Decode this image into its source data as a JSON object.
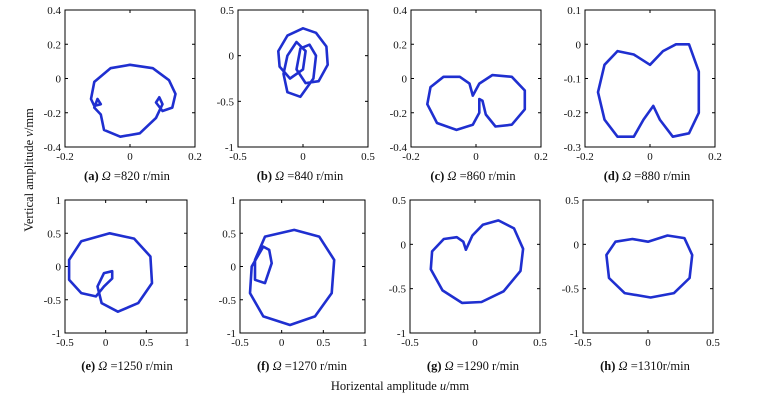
{
  "figure": {
    "xlabel_prefix": "Horizental amplitude ",
    "xlabel_var": "u",
    "xlabel_suffix": "/mm",
    "ylabel_prefix": "Vertical amplitude ",
    "ylabel_var": "v",
    "ylabel_suffix": "/mm"
  },
  "chart_data": [
    {
      "type": "line",
      "panel": "a",
      "letter": "(a)",
      "omega_symbol": "Ω",
      "speed_text": "=820 r/min",
      "xlim": [
        -0.2,
        0.2
      ],
      "ylim": [
        -0.4,
        0.4
      ],
      "xticks": [
        "-0.2",
        "0",
        "0.2"
      ],
      "yticks": [
        "0.4",
        "0.2",
        "0",
        "-0.2",
        "-0.4"
      ],
      "series": [
        {
          "points": [
            [
              0.0,
              0.08
            ],
            [
              0.07,
              0.06
            ],
            [
              0.12,
              -0.01
            ],
            [
              0.14,
              -0.09
            ],
            [
              0.13,
              -0.17
            ],
            [
              0.1,
              -0.19
            ],
            [
              0.08,
              -0.14
            ],
            [
              0.09,
              -0.11
            ],
            [
              0.1,
              -0.15
            ],
            [
              0.08,
              -0.23
            ],
            [
              0.03,
              -0.32
            ],
            [
              -0.03,
              -0.34
            ],
            [
              -0.08,
              -0.3
            ],
            [
              -0.09,
              -0.21
            ],
            [
              -0.11,
              -0.17
            ],
            [
              -0.1,
              -0.12
            ],
            [
              -0.09,
              -0.15
            ],
            [
              -0.11,
              -0.16
            ],
            [
              -0.12,
              -0.12
            ],
            [
              -0.11,
              -0.02
            ],
            [
              -0.06,
              0.06
            ],
            [
              0.0,
              0.08
            ]
          ]
        }
      ]
    },
    {
      "type": "line",
      "panel": "b",
      "letter": "(b)",
      "omega_symbol": "Ω",
      "speed_text": "=840 r/min",
      "xlim": [
        -0.5,
        0.5
      ],
      "ylim": [
        -1,
        0.5
      ],
      "xticks": [
        "-0.5",
        "0",
        "0.5"
      ],
      "yticks": [
        "0.5",
        "0",
        "-0.5",
        "-1"
      ],
      "series": [
        {
          "points": [
            [
              0.0,
              0.3
            ],
            [
              0.1,
              0.25
            ],
            [
              0.18,
              0.1
            ],
            [
              0.19,
              -0.1
            ],
            [
              0.12,
              -0.28
            ],
            [
              0.02,
              -0.3
            ],
            [
              -0.05,
              -0.15
            ],
            [
              -0.02,
              0.08
            ],
            [
              0.05,
              0.12
            ],
            [
              0.1,
              0.0
            ],
            [
              0.08,
              -0.25
            ],
            [
              -0.02,
              -0.45
            ],
            [
              -0.12,
              -0.4
            ],
            [
              -0.15,
              -0.2
            ],
            [
              -0.12,
              0.0
            ],
            [
              -0.05,
              0.15
            ],
            [
              0.02,
              0.05
            ],
            [
              0.0,
              -0.15
            ],
            [
              -0.1,
              -0.25
            ],
            [
              -0.18,
              -0.12
            ],
            [
              -0.19,
              0.05
            ],
            [
              -0.12,
              0.22
            ],
            [
              0.0,
              0.3
            ]
          ]
        }
      ]
    },
    {
      "type": "line",
      "panel": "c",
      "letter": "(c)",
      "omega_symbol": "Ω",
      "speed_text": "=860 r/min",
      "xlim": [
        -0.2,
        0.2
      ],
      "ylim": [
        -0.4,
        0.4
      ],
      "xticks": [
        "-0.2",
        "0",
        "0.2"
      ],
      "yticks": [
        "0.4",
        "0.2",
        "0",
        "-0.2",
        "-0.4"
      ],
      "series": [
        {
          "points": [
            [
              -0.01,
              -0.1
            ],
            [
              -0.02,
              -0.03
            ],
            [
              -0.05,
              0.01
            ],
            [
              -0.1,
              0.01
            ],
            [
              -0.14,
              -0.05
            ],
            [
              -0.15,
              -0.15
            ],
            [
              -0.12,
              -0.26
            ],
            [
              -0.06,
              -0.3
            ],
            [
              -0.01,
              -0.27
            ],
            [
              0.01,
              -0.2
            ],
            [
              0.01,
              -0.12
            ],
            [
              0.02,
              -0.13
            ],
            [
              0.03,
              -0.21
            ],
            [
              0.06,
              -0.28
            ],
            [
              0.11,
              -0.27
            ],
            [
              0.15,
              -0.18
            ],
            [
              0.15,
              -0.07
            ],
            [
              0.11,
              0.01
            ],
            [
              0.05,
              0.02
            ],
            [
              0.01,
              -0.03
            ],
            [
              -0.01,
              -0.1
            ]
          ]
        }
      ]
    },
    {
      "type": "line",
      "panel": "d",
      "letter": "(d)",
      "omega_symbol": "Ω",
      "speed_text": "=880 r/min",
      "xlim": [
        -0.2,
        0.2
      ],
      "ylim": [
        -0.3,
        0.1
      ],
      "xticks": [
        "-0.2",
        "0",
        "0.2"
      ],
      "yticks": [
        "0.1",
        "0",
        "-0.1",
        "-0.2",
        "-0.3"
      ],
      "series": [
        {
          "points": [
            [
              0.0,
              -0.06
            ],
            [
              -0.05,
              -0.03
            ],
            [
              -0.1,
              -0.02
            ],
            [
              -0.14,
              -0.06
            ],
            [
              -0.16,
              -0.14
            ],
            [
              -0.14,
              -0.22
            ],
            [
              -0.1,
              -0.27
            ],
            [
              -0.05,
              -0.27
            ],
            [
              -0.02,
              -0.22
            ],
            [
              0.01,
              -0.18
            ],
            [
              0.03,
              -0.22
            ],
            [
              0.07,
              -0.27
            ],
            [
              0.12,
              -0.26
            ],
            [
              0.15,
              -0.2
            ],
            [
              0.15,
              -0.08
            ],
            [
              0.12,
              0.0
            ],
            [
              0.08,
              0.0
            ],
            [
              0.04,
              -0.02
            ],
            [
              0.0,
              -0.06
            ]
          ]
        }
      ]
    },
    {
      "type": "line",
      "panel": "e",
      "letter": "(e)",
      "omega_symbol": "Ω",
      "speed_text": "=1250 r/min",
      "xlim": [
        -0.5,
        1
      ],
      "ylim": [
        -1,
        1
      ],
      "xticks": [
        "-0.5",
        "0",
        "0.5",
        "1"
      ],
      "yticks": [
        "1",
        "0.5",
        "0",
        "-0.5",
        "-1"
      ],
      "series": [
        {
          "points": [
            [
              0.05,
              0.5
            ],
            [
              0.35,
              0.42
            ],
            [
              0.55,
              0.15
            ],
            [
              0.57,
              -0.25
            ],
            [
              0.4,
              -0.55
            ],
            [
              0.15,
              -0.68
            ],
            [
              -0.05,
              -0.55
            ],
            [
              -0.1,
              -0.3
            ],
            [
              -0.02,
              -0.1
            ],
            [
              0.08,
              -0.07
            ],
            [
              0.08,
              -0.18
            ],
            [
              -0.02,
              -0.3
            ],
            [
              -0.12,
              -0.45
            ],
            [
              -0.3,
              -0.4
            ],
            [
              -0.45,
              -0.2
            ],
            [
              -0.45,
              0.1
            ],
            [
              -0.3,
              0.38
            ],
            [
              0.05,
              0.5
            ]
          ]
        }
      ]
    },
    {
      "type": "line",
      "panel": "f",
      "letter": "(f)",
      "omega_symbol": "Ω",
      "speed_text": "=1270 r/min",
      "xlim": [
        -0.5,
        1
      ],
      "ylim": [
        -1,
        1
      ],
      "xticks": [
        "-0.5",
        "0",
        "0.5",
        "1"
      ],
      "yticks": [
        "1",
        "0.5",
        "0",
        "-0.5",
        "-1"
      ],
      "series": [
        {
          "points": [
            [
              0.15,
              0.55
            ],
            [
              0.45,
              0.45
            ],
            [
              0.63,
              0.1
            ],
            [
              0.6,
              -0.4
            ],
            [
              0.4,
              -0.75
            ],
            [
              0.1,
              -0.88
            ],
            [
              -0.22,
              -0.75
            ],
            [
              -0.38,
              -0.4
            ],
            [
              -0.36,
              0.0
            ],
            [
              -0.22,
              0.3
            ],
            [
              -0.15,
              0.25
            ],
            [
              -0.12,
              0.05
            ],
            [
              -0.2,
              -0.25
            ],
            [
              -0.32,
              -0.2
            ],
            [
              -0.32,
              0.1
            ],
            [
              -0.2,
              0.45
            ],
            [
              0.15,
              0.55
            ]
          ]
        }
      ]
    },
    {
      "type": "line",
      "panel": "g",
      "letter": "(g)",
      "omega_symbol": "Ω",
      "speed_text": "=1290 r/min",
      "xlim": [
        -0.5,
        0.5
      ],
      "ylim": [
        -1,
        0.5
      ],
      "xticks": [
        "-0.5",
        "0",
        "0.5"
      ],
      "yticks": [
        "0.5",
        "0",
        "-0.5",
        "-1"
      ],
      "series": [
        {
          "points": [
            [
              -0.07,
              -0.06
            ],
            [
              -0.09,
              0.03
            ],
            [
              -0.14,
              0.08
            ],
            [
              -0.24,
              0.06
            ],
            [
              -0.33,
              -0.08
            ],
            [
              -0.34,
              -0.28
            ],
            [
              -0.25,
              -0.52
            ],
            [
              -0.1,
              -0.66
            ],
            [
              0.05,
              -0.65
            ],
            [
              0.22,
              -0.53
            ],
            [
              0.35,
              -0.3
            ],
            [
              0.37,
              -0.05
            ],
            [
              0.3,
              0.18
            ],
            [
              0.18,
              0.27
            ],
            [
              0.06,
              0.22
            ],
            [
              -0.02,
              0.1
            ],
            [
              -0.07,
              -0.06
            ]
          ]
        }
      ]
    },
    {
      "type": "line",
      "panel": "h",
      "letter": "(h)",
      "omega_symbol": "Ω",
      "speed_text": "=1310r/min",
      "xlim": [
        -0.5,
        0.5
      ],
      "ylim": [
        -1,
        0.5
      ],
      "xticks": [
        "-0.5",
        "0",
        "0.5"
      ],
      "yticks": [
        "0.5",
        "0",
        "-0.5",
        "-1"
      ],
      "series": [
        {
          "points": [
            [
              0.0,
              0.03
            ],
            [
              -0.12,
              0.06
            ],
            [
              -0.25,
              0.03
            ],
            [
              -0.32,
              -0.12
            ],
            [
              -0.3,
              -0.38
            ],
            [
              -0.18,
              -0.55
            ],
            [
              0.02,
              -0.6
            ],
            [
              0.2,
              -0.55
            ],
            [
              0.32,
              -0.38
            ],
            [
              0.34,
              -0.12
            ],
            [
              0.28,
              0.07
            ],
            [
              0.15,
              0.1
            ],
            [
              0.0,
              0.03
            ]
          ]
        }
      ]
    }
  ]
}
